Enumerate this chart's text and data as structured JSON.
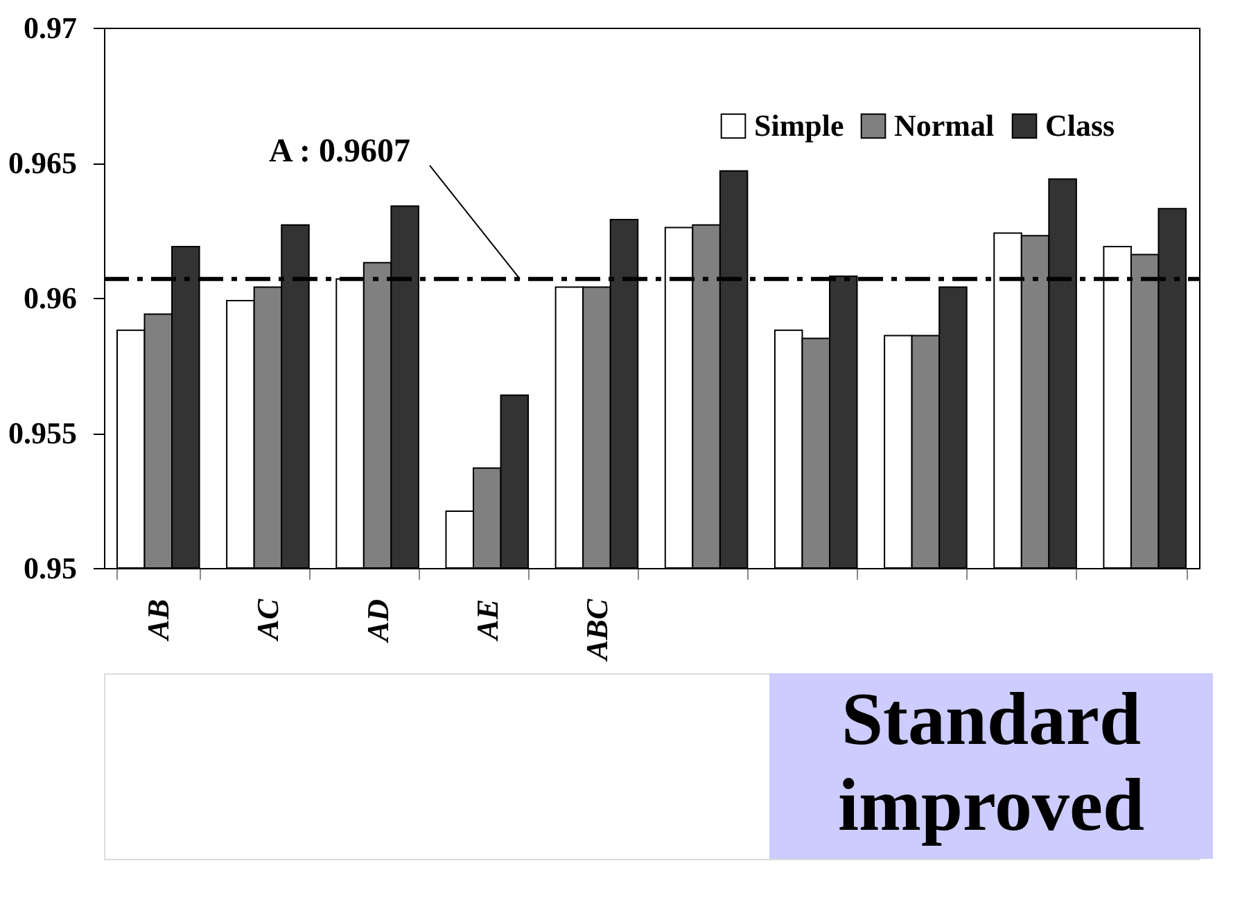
{
  "chart_data": {
    "type": "bar",
    "categories": [
      "AB",
      "AC",
      "AD",
      "AE",
      "ABC",
      null,
      null,
      null,
      null,
      null
    ],
    "series": [
      {
        "name": "Simple",
        "color": "#ffffff",
        "values": [
          0.9588,
          0.9599,
          0.9607,
          0.9521,
          0.9604,
          0.9626,
          0.9588,
          0.9586,
          0.9624,
          0.9619
        ]
      },
      {
        "name": "Normal",
        "color": "#808080",
        "values": [
          0.9594,
          0.9604,
          0.9613,
          0.9537,
          0.9604,
          0.9627,
          0.9585,
          0.9586,
          0.9623,
          0.9616
        ]
      },
      {
        "name": "Class",
        "color": "#333333",
        "values": [
          0.9619,
          0.9627,
          0.9634,
          0.9564,
          0.9629,
          0.9647,
          0.9608,
          0.9604,
          0.9644,
          0.9633
        ]
      }
    ],
    "ylim": [
      0.95,
      0.97
    ],
    "yticks": [
      0.95,
      0.955,
      0.96,
      0.965,
      0.97
    ],
    "ref_lines": [
      {
        "axis": "y",
        "value": 0.9607,
        "label": "A : 0.9607",
        "color": "#000000",
        "line_style": "dashdot"
      }
    ],
    "annotations": [
      "Standard",
      "improved"
    ],
    "legend": "top right",
    "grid": false
  }
}
